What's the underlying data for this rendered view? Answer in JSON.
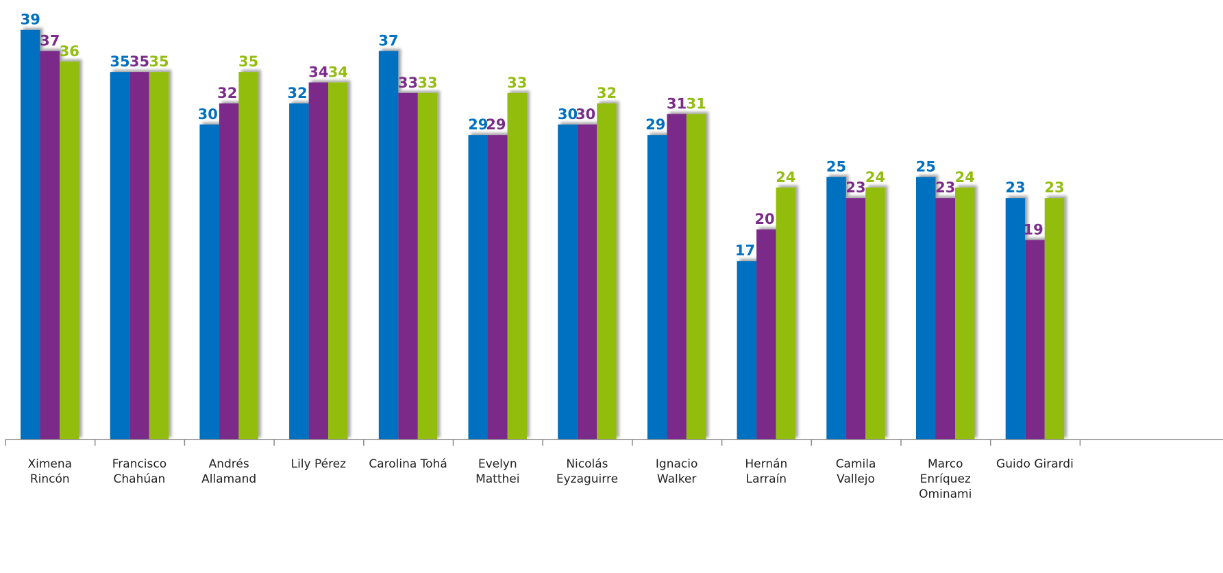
{
  "chart_data": {
    "type": "bar",
    "categories": [
      [
        "Ximena",
        "Rincón"
      ],
      [
        "Francisco",
        "Chahúan"
      ],
      [
        "Andrés",
        "Allamand"
      ],
      [
        "Lily Pérez"
      ],
      [
        "Carolina Tohá"
      ],
      [
        "Evelyn",
        "Matthei"
      ],
      [
        "Nicolás",
        "Eyzaguirre"
      ],
      [
        "Ignacio",
        "Walker"
      ],
      [
        "Hernán",
        "Larraín"
      ],
      [
        "Camila",
        "Vallejo"
      ],
      [
        "Marco",
        "Enríquez",
        "Ominami"
      ],
      [
        "Guido Girardi"
      ]
    ],
    "series": [
      {
        "color": "#0070C0",
        "values": [
          39,
          35,
          30,
          32,
          37,
          29,
          30,
          29,
          17,
          25,
          25,
          23
        ]
      },
      {
        "color": "#7B2C8A",
        "values": [
          37,
          35,
          32,
          34,
          33,
          29,
          30,
          31,
          20,
          23,
          23,
          19
        ]
      },
      {
        "color": "#93BD10",
        "values": [
          36,
          35,
          35,
          34,
          33,
          33,
          32,
          31,
          24,
          24,
          24,
          23
        ]
      }
    ],
    "ylim": [
      0,
      40
    ],
    "grid": false,
    "legend": "none",
    "data_labels": true
  }
}
